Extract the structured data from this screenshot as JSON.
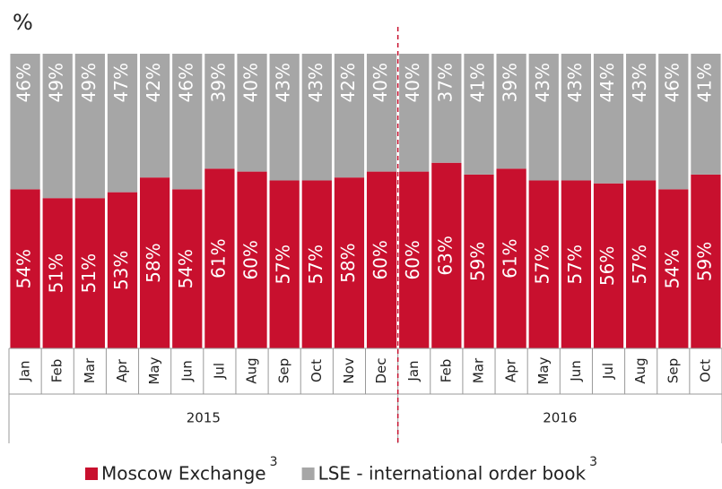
{
  "chart_data": {
    "type": "stacked_bar",
    "y_label": "%",
    "groups": [
      {
        "label": "2015",
        "categories": [
          "Jan",
          "Feb",
          "Mar",
          "Apr",
          "May",
          "Jun",
          "Jul",
          "Aug",
          "Sep",
          "Oct",
          "Nov",
          "Dec"
        ]
      },
      {
        "label": "2016",
        "categories": [
          "Jan",
          "Feb",
          "Mar",
          "Apr",
          "May",
          "Jun",
          "Jul",
          "Aug",
          "Sep",
          "Oct"
        ]
      }
    ],
    "series": [
      {
        "name": "Moscow Exchange",
        "superscript": "3",
        "color": "#c8102e",
        "values": [
          54,
          51,
          51,
          53,
          58,
          54,
          61,
          60,
          57,
          57,
          58,
          60,
          60,
          63,
          59,
          61,
          57,
          57,
          56,
          57,
          54,
          59
        ],
        "value_labels": [
          "54%",
          "51%",
          "51%",
          "53%",
          "58%",
          "54%",
          "61%",
          "60%",
          "57%",
          "57%",
          "58%",
          "60%",
          "60%",
          "63%",
          "59%",
          "61%",
          "57%",
          "57%",
          "56%",
          "57%",
          "54%",
          "59%"
        ]
      },
      {
        "name": "LSE - international order book",
        "superscript": "3",
        "color": "#a6a6a6",
        "values": [
          46,
          49,
          49,
          47,
          42,
          46,
          39,
          40,
          43,
          43,
          42,
          40,
          40,
          37,
          41,
          39,
          43,
          43,
          44,
          43,
          46,
          41
        ],
        "value_labels": [
          "46%",
          "49%",
          "49%",
          "47%",
          "42%",
          "46%",
          "39%",
          "40%",
          "43%",
          "43%",
          "42%",
          "40%",
          "40%",
          "37%",
          "41%",
          "39%",
          "43%",
          "43%",
          "44%",
          "43%",
          "46%",
          "41%"
        ]
      }
    ],
    "ylim": [
      0,
      100
    ],
    "divider_color": "#c8102e"
  }
}
